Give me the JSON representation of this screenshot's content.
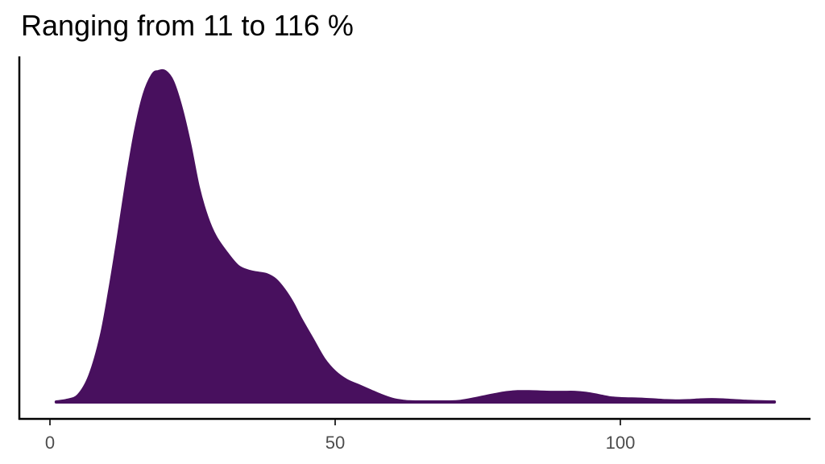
{
  "title": "Ranging from 11 to 116 %",
  "colors": {
    "fill": "#48105e",
    "axis": "#000000",
    "tick_label": "#4d4d4d"
  },
  "chart_data": {
    "type": "area",
    "subtype": "density",
    "title": "Ranging from 11 to 116 %",
    "xlabel": "",
    "ylabel": "",
    "xlim": [
      -5.5,
      133.5
    ],
    "x_ticks": [
      0,
      50,
      100
    ],
    "x_tick_labels": [
      "0",
      "50",
      "100"
    ],
    "y_ticks": [],
    "grid": false,
    "legend": null,
    "series": [
      {
        "name": "density",
        "color": "#48105e",
        "x": [
          1.1,
          3,
          5,
          7,
          9,
          10.5,
          12,
          13.5,
          15,
          16.5,
          18,
          19,
          20.2,
          21.5,
          23,
          24.5,
          26,
          27.5,
          29,
          31,
          33,
          35,
          36.5,
          38,
          39.5,
          41,
          42.5,
          44,
          46,
          48,
          50,
          52,
          54,
          56,
          58,
          60,
          62,
          64,
          66,
          68,
          70,
          72,
          74,
          76,
          78,
          80,
          82,
          84,
          86,
          88,
          90,
          92,
          94,
          96,
          98,
          100,
          102,
          104,
          106,
          108,
          110,
          112,
          114,
          116,
          118,
          120,
          122,
          124,
          126,
          127
        ],
        "relative_density": [
          0.0,
          0.005,
          0.02,
          0.08,
          0.2,
          0.34,
          0.5,
          0.67,
          0.82,
          0.93,
          0.99,
          1.0,
          1.0,
          0.97,
          0.89,
          0.78,
          0.65,
          0.56,
          0.5,
          0.45,
          0.41,
          0.395,
          0.39,
          0.385,
          0.37,
          0.34,
          0.3,
          0.25,
          0.19,
          0.13,
          0.09,
          0.065,
          0.05,
          0.035,
          0.02,
          0.008,
          0.002,
          0.0,
          0.0,
          0.0,
          0.0,
          0.002,
          0.008,
          0.015,
          0.022,
          0.028,
          0.031,
          0.031,
          0.03,
          0.029,
          0.029,
          0.029,
          0.026,
          0.02,
          0.013,
          0.01,
          0.009,
          0.008,
          0.006,
          0.004,
          0.003,
          0.004,
          0.006,
          0.007,
          0.006,
          0.004,
          0.002,
          0.001,
          0.0,
          0.0
        ]
      }
    ]
  }
}
